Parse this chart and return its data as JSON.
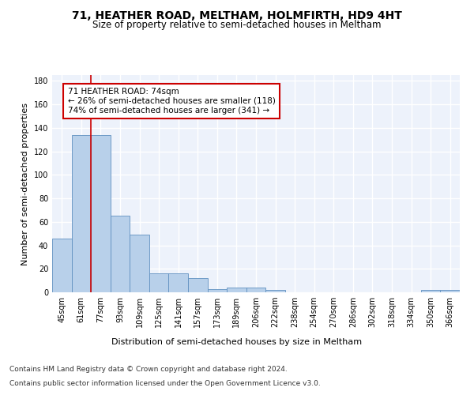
{
  "title": "71, HEATHER ROAD, MELTHAM, HOLMFIRTH, HD9 4HT",
  "subtitle": "Size of property relative to semi-detached houses in Meltham",
  "xlabel": "Distribution of semi-detached houses by size in Meltham",
  "ylabel": "Number of semi-detached properties",
  "categories": [
    "45sqm",
    "61sqm",
    "77sqm",
    "93sqm",
    "109sqm",
    "125sqm",
    "141sqm",
    "157sqm",
    "173sqm",
    "189sqm",
    "206sqm",
    "222sqm",
    "238sqm",
    "254sqm",
    "270sqm",
    "286sqm",
    "302sqm",
    "318sqm",
    "334sqm",
    "350sqm",
    "366sqm"
  ],
  "values": [
    46,
    134,
    134,
    65,
    49,
    16,
    16,
    12,
    3,
    4,
    4,
    2,
    0,
    0,
    0,
    0,
    0,
    0,
    0,
    2,
    2
  ],
  "bar_color": "#b8d0ea",
  "bar_edge_color": "#6090c0",
  "highlight_color": "#cc0000",
  "annotation_box_text": "71 HEATHER ROAD: 74sqm\n← 26% of semi-detached houses are smaller (118)\n74% of semi-detached houses are larger (341) →",
  "annotation_box_color": "#cc0000",
  "ylim": [
    0,
    185
  ],
  "yticks": [
    0,
    20,
    40,
    60,
    80,
    100,
    120,
    140,
    160,
    180
  ],
  "bg_color": "#edf2fb",
  "footer_line1": "Contains HM Land Registry data © Crown copyright and database right 2024.",
  "footer_line2": "Contains public sector information licensed under the Open Government Licence v3.0.",
  "title_fontsize": 10,
  "subtitle_fontsize": 8.5,
  "axis_label_fontsize": 8,
  "tick_fontsize": 7,
  "annotation_fontsize": 7.5,
  "footer_fontsize": 6.5
}
